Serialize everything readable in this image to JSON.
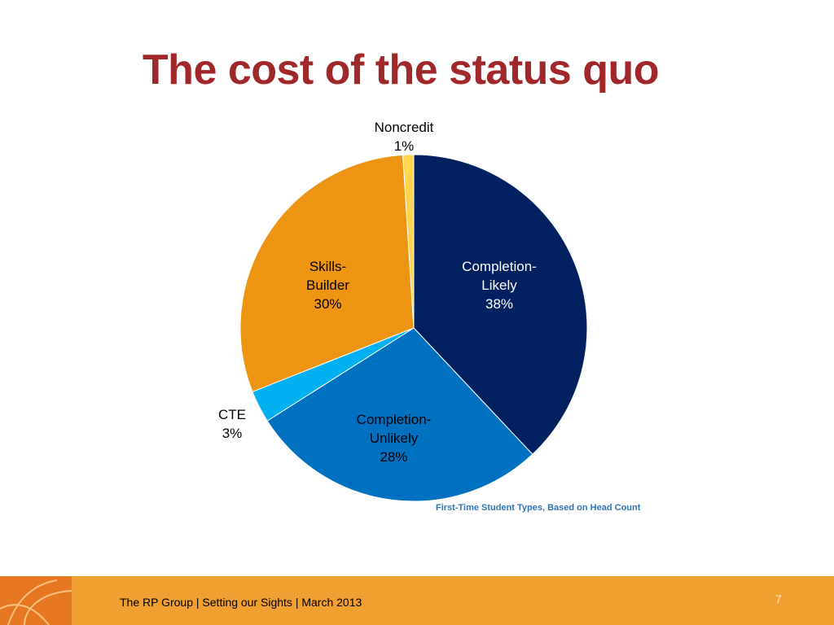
{
  "chart_data": {
    "type": "pie",
    "title": "The cost of the status quo",
    "subtitle": "First-Time Student Types, Based on Head Count",
    "categories": [
      "Completion-Likely",
      "Completion-Unlikely",
      "CTE",
      "Skills-Builder",
      "Noncredit"
    ],
    "values": [
      38,
      28,
      3,
      30,
      1
    ],
    "value_labels": [
      "38%",
      "28%",
      "3%",
      "30%",
      "1%"
    ],
    "colors": [
      "#002060",
      "#0070c0",
      "#00b0f0",
      "#ed9512",
      "#ffd54f"
    ]
  },
  "footer": {
    "text": "The RP Group | Setting our Sights | March 2013",
    "page_number": "7"
  }
}
